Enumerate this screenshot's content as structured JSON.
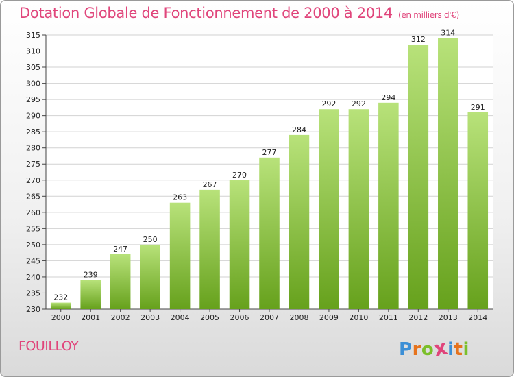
{
  "title": "Dotation Globale de Fonctionnement de 2000 à 2014",
  "subtitle": "(en milliers d'€)",
  "commune": "FOUILLOY",
  "brand": {
    "letters": [
      "P",
      "r",
      "o",
      "x",
      "i",
      "t",
      "i"
    ],
    "colors": [
      "#3c8fd6",
      "#e6731d",
      "#7bbf2a",
      "#e0457b",
      "#3c8fd6",
      "#e6731d",
      "#7bbf2a"
    ]
  },
  "colors": {
    "title": "#e0457b",
    "bar_light": "#b8e27a",
    "bar_dark": "#66a11c",
    "grid": "#d2d2d2"
  },
  "chart_data": {
    "type": "bar",
    "title": "Dotation Globale de Fonctionnement de 2000 à 2014",
    "subtitle": "(en milliers d'€)",
    "categories": [
      "2000",
      "2001",
      "2002",
      "2003",
      "2004",
      "2005",
      "2006",
      "2007",
      "2008",
      "2009",
      "2010",
      "2011",
      "2012",
      "2013",
      "2014"
    ],
    "values": [
      232,
      239,
      247,
      250,
      263,
      267,
      270,
      277,
      284,
      292,
      292,
      294,
      312,
      314,
      291
    ],
    "ylim": [
      230,
      315
    ],
    "yticks": [
      230,
      235,
      240,
      245,
      250,
      255,
      260,
      265,
      270,
      275,
      280,
      285,
      290,
      295,
      300,
      305,
      310,
      315
    ],
    "grid": true,
    "xlabel": "",
    "ylabel": ""
  }
}
